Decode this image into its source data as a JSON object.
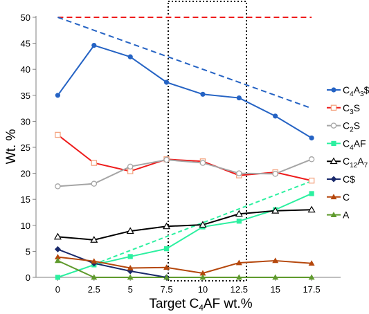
{
  "chart_data": {
    "type": "line",
    "xlabel_parts": [
      {
        "text": "Target C"
      },
      {
        "text": "4",
        "sub": true
      },
      {
        "text": "AF wt.%"
      }
    ],
    "ylabel": "Wt. %",
    "x": [
      0,
      2.5,
      5,
      7.5,
      10,
      12.5,
      15,
      17.5
    ],
    "x_tick_labels": [
      "0",
      "2.5",
      "5",
      "7.5",
      "10",
      "12.5",
      "15",
      "17.5"
    ],
    "xlim": [
      -1.5,
      19.5
    ],
    "ylim": [
      0,
      50
    ],
    "y_ticks": [
      0,
      5,
      10,
      15,
      20,
      25,
      30,
      35,
      40,
      45,
      50
    ],
    "y_tick_labels": [
      "0",
      "5",
      "10",
      "15",
      "20",
      "25",
      "30",
      "35",
      "40",
      "45",
      "50"
    ],
    "grid": false,
    "legend_position": "right",
    "highlight_region_x": [
      7.5,
      12.5
    ],
    "series": [
      {
        "name_parts": [
          {
            "text": "C"
          },
          {
            "text": "4",
            "sub": true
          },
          {
            "text": "A"
          },
          {
            "text": "3",
            "sub": true
          },
          {
            "text": "$"
          }
        ],
        "color": "#2563c4",
        "marker": "circle-filled",
        "values": [
          35.0,
          44.6,
          42.4,
          37.5,
          35.2,
          34.5,
          31.0,
          26.8
        ]
      },
      {
        "name_parts": [
          {
            "text": "C"
          },
          {
            "text": "3",
            "sub": true
          },
          {
            "text": "S"
          }
        ],
        "color": "#ee1c1c",
        "marker": "square-open",
        "marker_color": "#f4a582",
        "values": [
          27.4,
          22.0,
          20.4,
          22.7,
          22.3,
          19.6,
          20.2,
          18.6
        ]
      },
      {
        "name_parts": [
          {
            "text": "C"
          },
          {
            "text": "2",
            "sub": true
          },
          {
            "text": "S"
          }
        ],
        "color": "#a5a5a5",
        "marker": "circle-open",
        "values": [
          17.5,
          18.0,
          21.3,
          22.6,
          22.0,
          20.0,
          19.9,
          22.7
        ]
      },
      {
        "name_parts": [
          {
            "text": "C"
          },
          {
            "text": "4",
            "sub": true
          },
          {
            "text": "AF"
          }
        ],
        "color": "#2cf0a0",
        "marker": "square-filled",
        "values": [
          0.0,
          2.4,
          4.0,
          5.5,
          9.7,
          10.8,
          13.0,
          16.1
        ]
      },
      {
        "name_parts": [
          {
            "text": "C"
          },
          {
            "text": "12",
            "sub": true
          },
          {
            "text": "A"
          },
          {
            "text": "7",
            "sub": true
          }
        ],
        "color": "#000000",
        "marker": "triangle-open",
        "values": [
          7.8,
          7.2,
          8.9,
          9.8,
          10.1,
          12.2,
          12.8,
          13.0
        ]
      },
      {
        "name_parts": [
          {
            "text": "C$"
          }
        ],
        "color": "#1a2a6c",
        "marker": "diamond-filled",
        "values": [
          5.4,
          2.7,
          1.2,
          0.0,
          null,
          null,
          null,
          null
        ]
      },
      {
        "name_parts": [
          {
            "text": "C"
          }
        ],
        "color": "#b5470c",
        "marker": "triangle-filled",
        "values": [
          3.9,
          3.1,
          1.8,
          1.9,
          0.8,
          2.8,
          3.2,
          2.7
        ]
      },
      {
        "name_parts": [
          {
            "text": "A"
          }
        ],
        "color": "#5f9a2d",
        "marker": "triangle-filled",
        "values": [
          3.2,
          0.0,
          0.0,
          0.0,
          0.0,
          0.0,
          0.0,
          0.0
        ]
      }
    ],
    "reference_lines": [
      {
        "color": "#ee1c1c",
        "style": "dashed",
        "points": [
          [
            0,
            50
          ],
          [
            17.5,
            50
          ]
        ]
      },
      {
        "color": "#2563c4",
        "style": "dashed",
        "points": [
          [
            0,
            50
          ],
          [
            17.5,
            32.5
          ]
        ]
      },
      {
        "color": "#2cf0a0",
        "style": "dashed",
        "points": [
          [
            2.5,
            2.5
          ],
          [
            17.5,
            18.5
          ]
        ]
      }
    ]
  }
}
